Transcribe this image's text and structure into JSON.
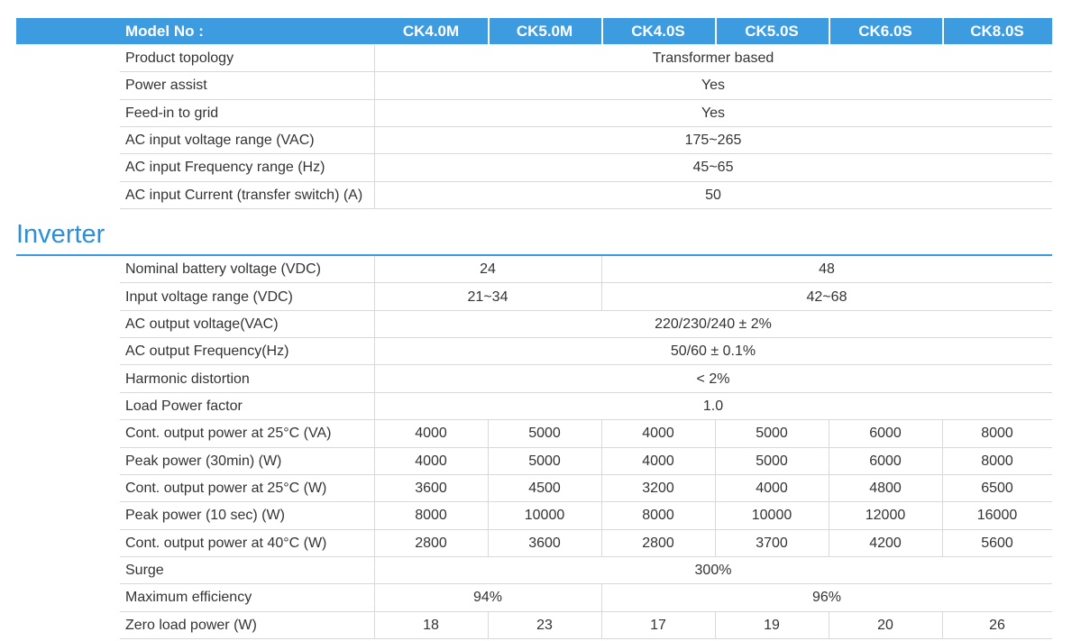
{
  "header": {
    "label": "Model No :",
    "models": [
      "CK4.0M",
      "CK5.0M",
      "CK4.0S",
      "CK5.0S",
      "CK6.0S",
      "CK8.0S"
    ]
  },
  "sections": [
    {
      "rows": [
        {
          "label": "Product  topology",
          "cells": [
            "Transformer based"
          ]
        },
        {
          "label": "Power assist",
          "cells": [
            "Yes"
          ]
        },
        {
          "label": "Feed-in to grid",
          "cells": [
            "Yes"
          ]
        },
        {
          "label": "AC input voltage range (VAC)",
          "cells": [
            "175~265"
          ]
        },
        {
          "label": "AC input Frequency range (Hz)",
          "cells": [
            "45~65"
          ]
        },
        {
          "label": "AC input Current (transfer switch) (A)",
          "cells": [
            "50"
          ]
        }
      ]
    },
    {
      "title": "Inverter",
      "rows": [
        {
          "label": "Nominal battery voltage (VDC)",
          "cells": [
            "24",
            "48"
          ]
        },
        {
          "label": "Input voltage range (VDC)",
          "cells": [
            "21~34",
            "42~68"
          ]
        },
        {
          "label": "AC output voltage(VAC)",
          "cells": [
            "220/230/240 ± 2%"
          ]
        },
        {
          "label": "AC output Frequency(Hz)",
          "cells": [
            "50/60 ± 0.1%"
          ]
        },
        {
          "label": "Harmonic distortion",
          "cells": [
            "< 2%"
          ]
        },
        {
          "label": "Load Power factor",
          "cells": [
            "1.0"
          ]
        },
        {
          "label": "Cont. output power at 25°C (VA)",
          "cells": [
            "4000",
            "5000",
            "4000",
            "5000",
            "6000",
            "8000"
          ]
        },
        {
          "label": "Peak power (30min) (W)",
          "cells": [
            "4000",
            "5000",
            "4000",
            "5000",
            "6000",
            "8000"
          ]
        },
        {
          "label": "Cont. output power at 25°C (W)",
          "cells": [
            "3600",
            "4500",
            "3200",
            "4000",
            "4800",
            "6500"
          ]
        },
        {
          "label": "Peak power (10 sec) (W)",
          "cells": [
            "8000",
            "10000",
            "8000",
            "10000",
            "12000",
            "16000"
          ]
        },
        {
          "label": "Cont. output power at 40°C (W)",
          "cells": [
            "2800",
            "3600",
            "2800",
            "3700",
            "4200",
            "5600"
          ]
        },
        {
          "label": "Surge",
          "cells": [
            "300%"
          ]
        },
        {
          "label": "Maximum efficiency",
          "cells": [
            "94%",
            "96%"
          ]
        },
        {
          "label": "Zero load power (W)",
          "cells": [
            "18",
            "23",
            "17",
            "19",
            "20",
            "26"
          ]
        }
      ]
    }
  ]
}
